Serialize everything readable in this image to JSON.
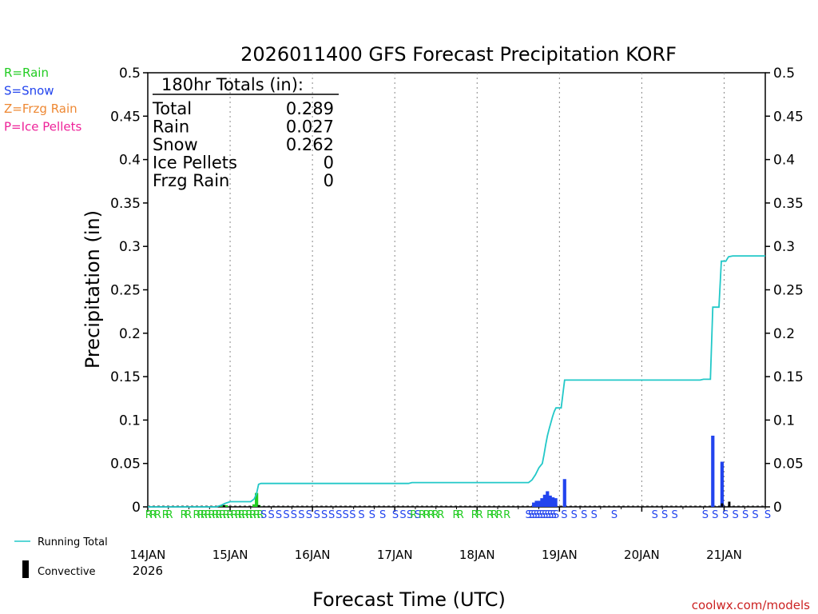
{
  "chart_data": {
    "type": "bar",
    "title": "2026011400 GFS Forecast Precipitation KORF",
    "xlabel": "Forecast Time (UTC)",
    "ylabel": "Precipitation (in)",
    "ylim": [
      0,
      0.5
    ],
    "y_ticks": [
      "0",
      "0.05",
      "0.1",
      "0.15",
      "0.2",
      "0.25",
      "0.3",
      "0.35",
      "0.4",
      "0.45",
      "0.5"
    ],
    "xlim_hours": [
      0,
      180
    ],
    "x_ticks": [
      {
        "hour": 0,
        "label": "14JAN",
        "sub": "2026"
      },
      {
        "hour": 24,
        "label": "15JAN"
      },
      {
        "hour": 48,
        "label": "16JAN"
      },
      {
        "hour": 72,
        "label": "17JAN"
      },
      {
        "hour": 96,
        "label": "18JAN"
      },
      {
        "hour": 120,
        "label": "19JAN"
      },
      {
        "hour": 144,
        "label": "20JAN"
      },
      {
        "hour": 168,
        "label": "21JAN"
      }
    ],
    "grid": "vertical dotted at day boundaries",
    "type_legend": [
      {
        "text": "R=Rain",
        "color": "#22cc22"
      },
      {
        "text": "S=Snow",
        "color": "#2244ee"
      },
      {
        "text": "Z=Frzg Rain",
        "color": "#ee8833"
      },
      {
        "text": "P=Ice Pellets",
        "color": "#ee2299"
      }
    ],
    "series_legend": [
      {
        "text": "Running Total",
        "color": "#22c8c8"
      },
      {
        "text": "Convective",
        "color": "#000000"
      }
    ],
    "totals": {
      "header": "180hr Totals (in):",
      "rows": [
        {
          "label": "Total",
          "value": "0.289"
        },
        {
          "label": "Rain",
          "value": "0.027"
        },
        {
          "label": "Snow",
          "value": "0.262"
        },
        {
          "label": "Ice Pellets",
          "value": "0"
        },
        {
          "label": "Frzg Rain",
          "value": "0"
        }
      ]
    },
    "running_total": [
      [
        0,
        0
      ],
      [
        20,
        0
      ],
      [
        21.5,
        0.002
      ],
      [
        22.5,
        0.004
      ],
      [
        24,
        0.006
      ],
      [
        30,
        0.006
      ],
      [
        31,
        0.009
      ],
      [
        31.7,
        0.015
      ],
      [
        32.3,
        0.026
      ],
      [
        33,
        0.027
      ],
      [
        76,
        0.027
      ],
      [
        77,
        0.028
      ],
      [
        111,
        0.028
      ],
      [
        112,
        0.031
      ],
      [
        113,
        0.037
      ],
      [
        114,
        0.045
      ],
      [
        115,
        0.05
      ],
      [
        115.5,
        0.06
      ],
      [
        116,
        0.072
      ],
      [
        116.5,
        0.082
      ],
      [
        117,
        0.09
      ],
      [
        117.5,
        0.097
      ],
      [
        118,
        0.104
      ],
      [
        118.5,
        0.11
      ],
      [
        119,
        0.114
      ],
      [
        120.5,
        0.114
      ],
      [
        121.5,
        0.146
      ],
      [
        161,
        0.146
      ],
      [
        162,
        0.147
      ],
      [
        164,
        0.147
      ],
      [
        164.7,
        0.23
      ],
      [
        166.5,
        0.23
      ],
      [
        167.2,
        0.283
      ],
      [
        168.5,
        0.283
      ],
      [
        169.3,
        0.288
      ],
      [
        170.5,
        0.289
      ],
      [
        180,
        0.289
      ]
    ],
    "bars": [
      {
        "hour": 21.5,
        "value": 0.001,
        "ptype": "R"
      },
      {
        "hour": 22.2,
        "value": 0.002,
        "ptype": "R"
      },
      {
        "hour": 22.9,
        "value": 0.002,
        "ptype": "R"
      },
      {
        "hour": 31.0,
        "value": 0.003,
        "ptype": "R"
      },
      {
        "hour": 31.7,
        "value": 0.016,
        "ptype": "R"
      },
      {
        "hour": 32.4,
        "value": 0.002,
        "ptype": "R"
      },
      {
        "hour": 112.5,
        "value": 0.005,
        "ptype": "S"
      },
      {
        "hour": 113.3,
        "value": 0.007,
        "ptype": "S"
      },
      {
        "hour": 114.1,
        "value": 0.007,
        "ptype": "S"
      },
      {
        "hour": 114.9,
        "value": 0.01,
        "ptype": "S"
      },
      {
        "hour": 115.7,
        "value": 0.014,
        "ptype": "S"
      },
      {
        "hour": 116.5,
        "value": 0.018,
        "ptype": "S"
      },
      {
        "hour": 117.3,
        "value": 0.013,
        "ptype": "S"
      },
      {
        "hour": 118.1,
        "value": 0.011,
        "ptype": "S"
      },
      {
        "hour": 118.9,
        "value": 0.01,
        "ptype": "S"
      },
      {
        "hour": 121.5,
        "value": 0.032,
        "ptype": "S"
      },
      {
        "hour": 164.7,
        "value": 0.082,
        "ptype": "S"
      },
      {
        "hour": 167.4,
        "value": 0.052,
        "ptype": "S"
      }
    ],
    "convective_bars": [
      {
        "hour": 22.2,
        "value": 0.002
      },
      {
        "hour": 32.4,
        "value": 0.002
      },
      {
        "hour": 167.4,
        "value": 0.004
      },
      {
        "hour": 169.5,
        "value": 0.006
      }
    ],
    "ptype_markers": [
      {
        "hour": 0.3,
        "ptype": "R"
      },
      {
        "hour": 1.6,
        "ptype": "R"
      },
      {
        "hour": 2.9,
        "ptype": "R"
      },
      {
        "hour": 5.2,
        "ptype": "R"
      },
      {
        "hour": 6.3,
        "ptype": "R"
      },
      {
        "hour": 10.5,
        "ptype": "R"
      },
      {
        "hour": 11.8,
        "ptype": "R"
      },
      {
        "hour": 14.2,
        "ptype": "R"
      },
      {
        "hour": 15.5,
        "ptype": "R"
      },
      {
        "hour": 16.4,
        "ptype": "R"
      },
      {
        "hour": 17.6,
        "ptype": "R"
      },
      {
        "hour": 18.6,
        "ptype": "R"
      },
      {
        "hour": 19.8,
        "ptype": "R"
      },
      {
        "hour": 20.7,
        "ptype": "R"
      },
      {
        "hour": 21.8,
        "ptype": "R"
      },
      {
        "hour": 22.9,
        "ptype": "R"
      },
      {
        "hour": 24.0,
        "ptype": "R"
      },
      {
        "hour": 25.2,
        "ptype": "R"
      },
      {
        "hour": 26.4,
        "ptype": "R"
      },
      {
        "hour": 27.3,
        "ptype": "R"
      },
      {
        "hour": 28.4,
        "ptype": "R"
      },
      {
        "hour": 29.6,
        "ptype": "R"
      },
      {
        "hour": 30.6,
        "ptype": "R"
      },
      {
        "hour": 31.8,
        "ptype": "R"
      },
      {
        "hour": 32.8,
        "ptype": "R"
      },
      {
        "hour": 33.8,
        "ptype": "S"
      },
      {
        "hour": 36.0,
        "ptype": "S"
      },
      {
        "hour": 38.2,
        "ptype": "S"
      },
      {
        "hour": 40.4,
        "ptype": "S"
      },
      {
        "hour": 42.6,
        "ptype": "S"
      },
      {
        "hour": 44.8,
        "ptype": "S"
      },
      {
        "hour": 47.0,
        "ptype": "S"
      },
      {
        "hour": 49.3,
        "ptype": "S"
      },
      {
        "hour": 51.5,
        "ptype": "S"
      },
      {
        "hour": 53.6,
        "ptype": "S"
      },
      {
        "hour": 55.7,
        "ptype": "S"
      },
      {
        "hour": 57.7,
        "ptype": "S"
      },
      {
        "hour": 59.7,
        "ptype": "S"
      },
      {
        "hour": 62.3,
        "ptype": "S"
      },
      {
        "hour": 65.4,
        "ptype": "S"
      },
      {
        "hour": 68.5,
        "ptype": "S"
      },
      {
        "hour": 72.2,
        "ptype": "S"
      },
      {
        "hour": 74.4,
        "ptype": "S"
      },
      {
        "hour": 76.4,
        "ptype": "S"
      },
      {
        "hour": 77.5,
        "ptype": "R"
      },
      {
        "hour": 78.7,
        "ptype": "S"
      },
      {
        "hour": 80.0,
        "ptype": "R"
      },
      {
        "hour": 81.3,
        "ptype": "R"
      },
      {
        "hour": 82.6,
        "ptype": "R"
      },
      {
        "hour": 83.9,
        "ptype": "R"
      },
      {
        "hour": 85.4,
        "ptype": "R"
      },
      {
        "hour": 89.9,
        "ptype": "R"
      },
      {
        "hour": 91.1,
        "ptype": "R"
      },
      {
        "hour": 95.3,
        "ptype": "R"
      },
      {
        "hour": 96.7,
        "ptype": "R"
      },
      {
        "hour": 99.8,
        "ptype": "R"
      },
      {
        "hour": 101.0,
        "ptype": "R"
      },
      {
        "hour": 102.5,
        "ptype": "R"
      },
      {
        "hour": 104.7,
        "ptype": "R"
      },
      {
        "hour": 111.0,
        "ptype": "S"
      },
      {
        "hour": 111.8,
        "ptype": "S"
      },
      {
        "hour": 112.6,
        "ptype": "S"
      },
      {
        "hour": 113.4,
        "ptype": "S"
      },
      {
        "hour": 114.2,
        "ptype": "S"
      },
      {
        "hour": 115.0,
        "ptype": "S"
      },
      {
        "hour": 115.8,
        "ptype": "S"
      },
      {
        "hour": 116.6,
        "ptype": "S"
      },
      {
        "hour": 117.4,
        "ptype": "S"
      },
      {
        "hour": 118.2,
        "ptype": "S"
      },
      {
        "hour": 119.0,
        "ptype": "S"
      },
      {
        "hour": 121.4,
        "ptype": "S"
      },
      {
        "hour": 124.3,
        "ptype": "S"
      },
      {
        "hour": 127.2,
        "ptype": "S"
      },
      {
        "hour": 130.1,
        "ptype": "S"
      },
      {
        "hour": 136.0,
        "ptype": "S"
      },
      {
        "hour": 147.8,
        "ptype": "S"
      },
      {
        "hour": 150.7,
        "ptype": "S"
      },
      {
        "hour": 153.6,
        "ptype": "S"
      },
      {
        "hour": 162.5,
        "ptype": "S"
      },
      {
        "hour": 165.4,
        "ptype": "S"
      },
      {
        "hour": 168.4,
        "ptype": "S"
      },
      {
        "hour": 171.3,
        "ptype": "S"
      },
      {
        "hour": 174.2,
        "ptype": "S"
      },
      {
        "hour": 177.1,
        "ptype": "S"
      },
      {
        "hour": 183.0,
        "ptype": "S"
      }
    ],
    "credit": "coolwx.com/models"
  }
}
